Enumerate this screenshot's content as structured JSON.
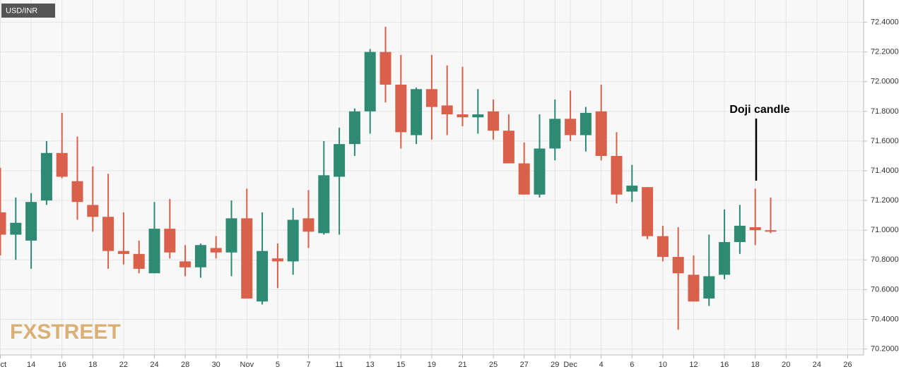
{
  "chart_data": {
    "type": "candlestick",
    "title": "USD/INR",
    "annotation": "Doji candle",
    "watermark": "FXSTREET",
    "categories": [
      "Oct",
      null,
      "14",
      null,
      "16",
      null,
      "18",
      null,
      "22",
      null,
      "24",
      null,
      "28",
      null,
      "30",
      null,
      "Nov",
      null,
      "5",
      null,
      "7",
      null,
      "11",
      null,
      "13",
      null,
      "15",
      null,
      "19",
      null,
      "21",
      null,
      "25",
      null,
      "27",
      null,
      "29",
      "Dec",
      null,
      "4",
      null,
      "6",
      null,
      "10",
      null,
      "12",
      null,
      "16",
      null,
      "18",
      null,
      "20",
      null,
      "24",
      null,
      "26"
    ],
    "open": [
      71.12,
      70.97,
      70.93,
      71.2,
      71.52,
      71.33,
      71.17,
      71.09,
      70.86,
      70.84,
      70.71,
      71.01,
      70.79,
      70.75,
      70.88,
      70.85,
      71.08,
      70.52,
      70.81,
      70.79,
      71.08,
      70.98,
      71.36,
      71.58,
      71.8,
      72.2,
      71.98,
      71.64,
      71.95,
      71.84,
      71.78,
      71.76,
      71.8,
      71.67,
      71.45,
      71.24,
      71.55,
      71.75,
      71.64,
      71.8,
      71.5,
      71.26,
      71.29,
      70.96,
      70.82,
      70.7,
      70.54,
      70.7,
      70.92,
      71.02,
      71.0,
      null,
      null,
      null,
      null,
      null
    ],
    "high": [
      71.42,
      71.22,
      71.25,
      71.6,
      71.79,
      71.63,
      71.43,
      71.38,
      71.12,
      70.93,
      71.19,
      71.21,
      70.9,
      70.91,
      70.96,
      71.2,
      71.28,
      71.12,
      70.91,
      71.15,
      71.27,
      71.6,
      71.69,
      71.82,
      72.22,
      72.37,
      72.18,
      71.96,
      72.18,
      72.11,
      72.1,
      71.95,
      71.88,
      71.78,
      71.59,
      71.78,
      71.88,
      71.94,
      71.83,
      71.98,
      71.66,
      71.44,
      71.29,
      71.03,
      71.02,
      70.83,
      70.97,
      71.14,
      71.17,
      71.28,
      71.22,
      null,
      null,
      null,
      null,
      null
    ],
    "low": [
      70.83,
      70.8,
      70.74,
      71.17,
      71.35,
      71.07,
      70.99,
      70.74,
      70.77,
      70.71,
      70.71,
      70.81,
      70.69,
      70.68,
      70.81,
      70.69,
      70.54,
      70.5,
      70.61,
      70.7,
      70.88,
      70.97,
      70.97,
      71.5,
      71.65,
      71.86,
      71.55,
      71.58,
      71.61,
      71.64,
      71.7,
      71.65,
      71.61,
      71.45,
      71.24,
      71.22,
      71.47,
      71.6,
      71.53,
      71.47,
      71.18,
      71.19,
      70.94,
      70.79,
      70.33,
      70.52,
      70.49,
      70.67,
      70.84,
      70.9,
      70.98,
      null,
      null,
      null,
      null,
      null
    ],
    "close": [
      70.97,
      71.05,
      71.19,
      71.52,
      71.36,
      71.19,
      71.09,
      70.86,
      70.84,
      70.74,
      71.01,
      70.85,
      70.75,
      70.9,
      70.85,
      71.08,
      70.54,
      70.86,
      70.79,
      71.07,
      70.99,
      71.37,
      71.58,
      71.8,
      72.2,
      71.98,
      71.66,
      71.95,
      71.83,
      71.78,
      71.76,
      71.78,
      71.67,
      71.45,
      71.24,
      71.55,
      71.75,
      71.64,
      71.79,
      71.5,
      71.24,
      71.3,
      70.96,
      70.82,
      70.71,
      70.52,
      70.69,
      70.92,
      71.03,
      71.0,
      70.99,
      null,
      null,
      null,
      null,
      null
    ],
    "up_color": "#2e8a72",
    "down_color": "#d9604a",
    "ylim": [
      70.16,
      72.55
    ],
    "yticks": [
      {
        "value": 70.2,
        "label": "70.2000"
      },
      {
        "value": 70.4,
        "label": "70.4000"
      },
      {
        "value": 70.6,
        "label": "70.6000"
      },
      {
        "value": 70.8,
        "label": "70.8000"
      },
      {
        "value": 71.0,
        "label": "71.0000"
      },
      {
        "value": 71.2,
        "label": "71.2000"
      },
      {
        "value": 71.4,
        "label": "71.4000"
      },
      {
        "value": 71.6,
        "label": "71.6000"
      },
      {
        "value": 71.8,
        "label": "71.8000"
      },
      {
        "value": 72.0,
        "label": "72.0000"
      },
      {
        "value": 72.2,
        "label": "72.2000"
      },
      {
        "value": 72.4,
        "label": "72.4000"
      }
    ],
    "grid": true
  }
}
